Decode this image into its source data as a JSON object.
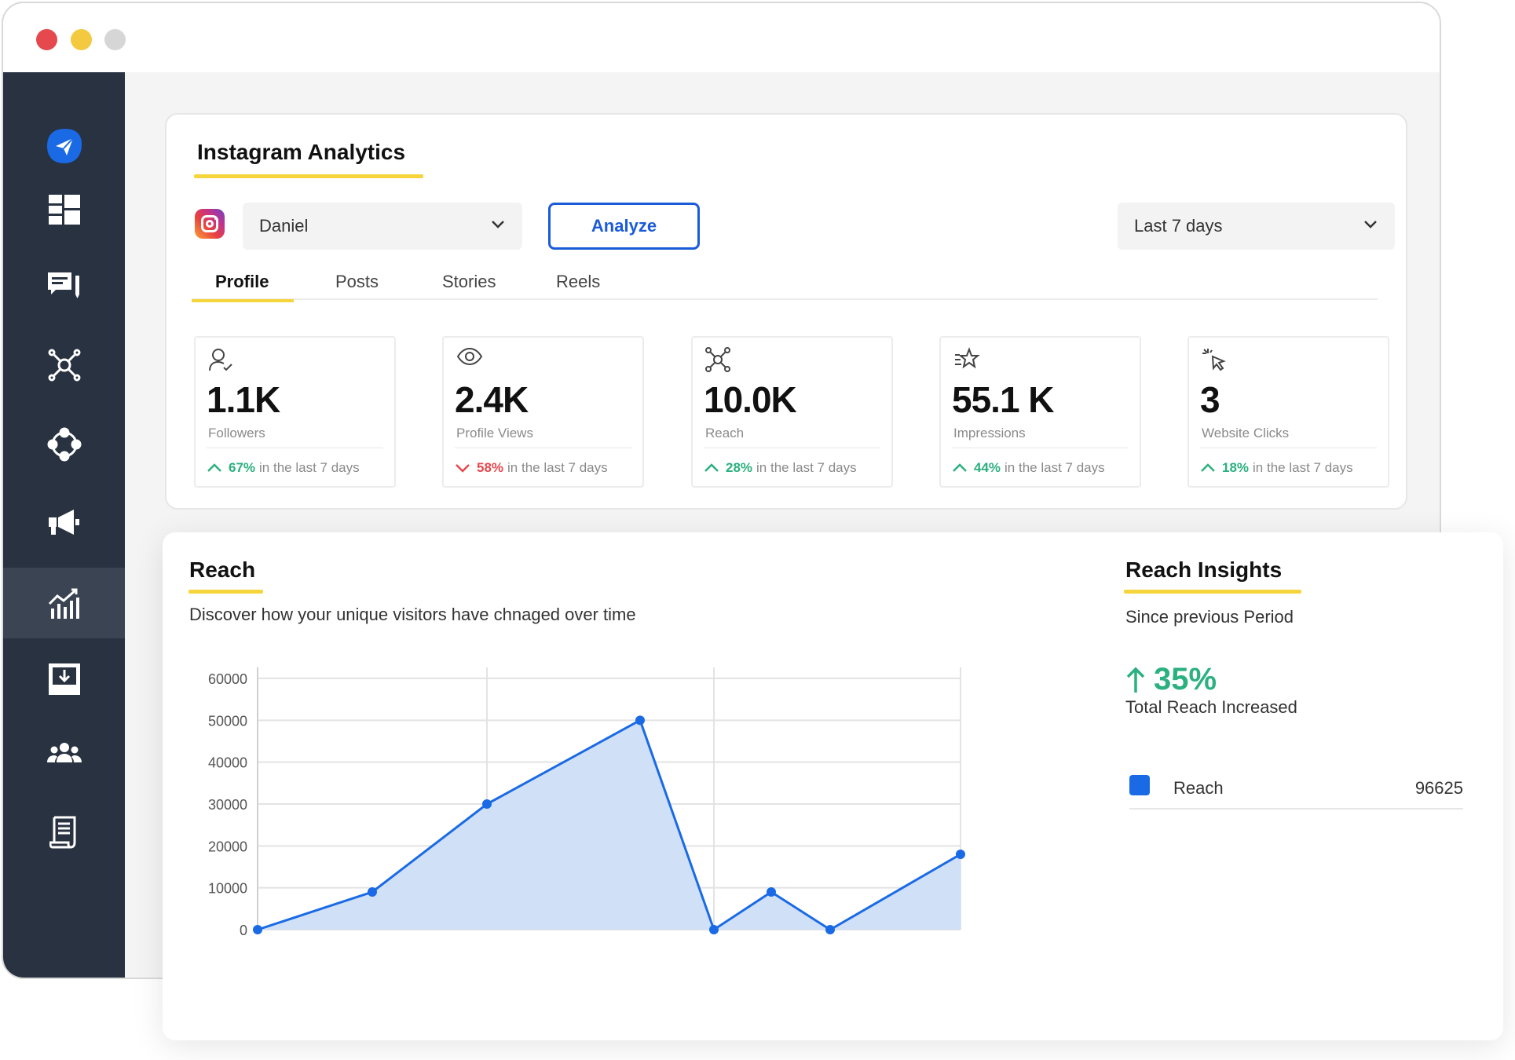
{
  "window": {
    "controls": [
      "close",
      "minimize",
      "maximize"
    ]
  },
  "sidebar": {
    "items": [
      {
        "name": "send-icon",
        "active": false
      },
      {
        "name": "dashboard-icon",
        "active": false
      },
      {
        "name": "messages-icon",
        "active": false
      },
      {
        "name": "network-icon",
        "active": false
      },
      {
        "name": "workflow-icon",
        "active": false
      },
      {
        "name": "megaphone-icon",
        "active": false
      },
      {
        "name": "analytics-icon",
        "active": true
      },
      {
        "name": "inbox-download-icon",
        "active": false
      },
      {
        "name": "team-icon",
        "active": false
      },
      {
        "name": "report-icon",
        "active": false
      }
    ]
  },
  "analytics": {
    "title": "Instagram Analytics",
    "account_select": "Daniel",
    "analyze_label": "Analyze",
    "period_select": "Last 7 days",
    "tabs": [
      {
        "label": "Profile",
        "active": true
      },
      {
        "label": "Posts",
        "active": false
      },
      {
        "label": "Stories",
        "active": false
      },
      {
        "label": "Reels",
        "active": false
      }
    ],
    "stats": [
      {
        "icon": "user-check-icon",
        "value": "1.1K",
        "label": "Followers",
        "pct": "67%",
        "direction": "up",
        "suffix": "in the last 7 days"
      },
      {
        "icon": "eye-icon",
        "value": "2.4K",
        "label": "Profile Views",
        "pct": "58%",
        "direction": "down",
        "suffix": "in the last 7 days"
      },
      {
        "icon": "network-icon",
        "value": "10.0K",
        "label": "Reach",
        "pct": "28%",
        "direction": "up",
        "suffix": "in the last 7 days"
      },
      {
        "icon": "star-icon",
        "value": "55.1 K",
        "label": "Impressions",
        "pct": "44%",
        "direction": "up",
        "suffix": "in the last 7 days"
      },
      {
        "icon": "cursor-click-icon",
        "value": "3",
        "label": "Website Clicks",
        "pct": "18%",
        "direction": "up",
        "suffix": "in the last 7 days"
      }
    ]
  },
  "reach": {
    "title": "Reach",
    "description": "Discover how your unique visitors have chnaged over time",
    "insights_title": "Reach Insights",
    "since_label": "Since previous Period",
    "change_pct": "35%",
    "change_label": "Total Reach Increased",
    "legend": {
      "name": "Reach",
      "value": "96625",
      "color": "#1a6ae6"
    }
  },
  "chart_data": {
    "type": "area",
    "x": [
      0,
      1,
      2,
      3,
      4,
      5,
      6,
      7
    ],
    "series": [
      {
        "name": "Reach",
        "values": [
          0,
          9000,
          30000,
          50000,
          0,
          9000,
          0,
          18000
        ]
      }
    ],
    "y_ticks": [
      0,
      10000,
      20000,
      30000,
      40000,
      50000,
      60000
    ],
    "ylim": [
      0,
      60000
    ],
    "grid": true,
    "colors": {
      "line": "#1a6ae6",
      "fill": "#cfe0f7"
    }
  }
}
